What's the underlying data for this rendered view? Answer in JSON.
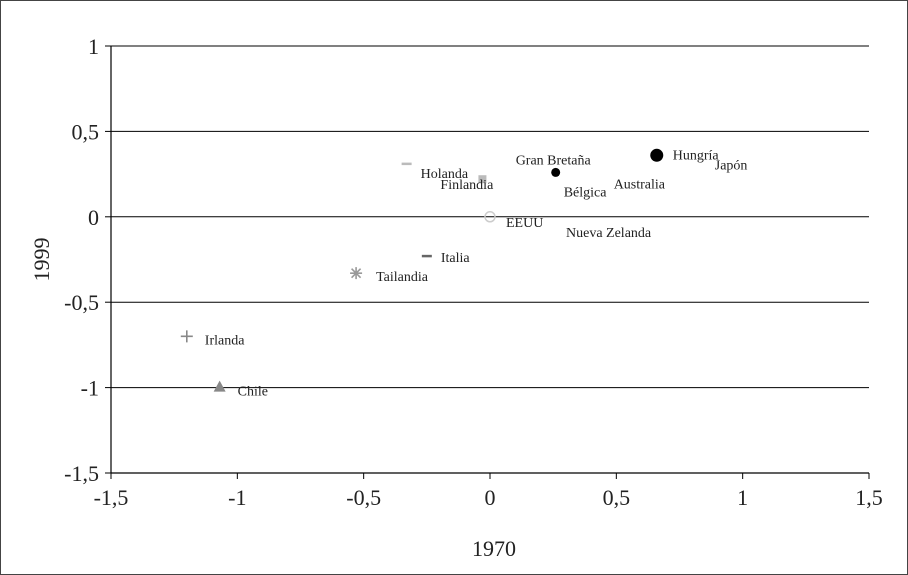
{
  "chart_data": {
    "type": "scatter",
    "title": "",
    "xlabel": "1970",
    "ylabel": "1999",
    "xlim": [
      -1.5,
      1.5
    ],
    "ylim": [
      -1.5,
      1
    ],
    "x_ticks": [
      -1.5,
      -1,
      -0.5,
      0,
      0.5,
      1,
      1.5
    ],
    "x_tick_labels": [
      "-1,5",
      "-1",
      "-0,5",
      "0",
      "0,5",
      "1",
      "1,5"
    ],
    "y_ticks": [
      1,
      0.5,
      0,
      -0.5,
      -1,
      -1.5
    ],
    "y_tick_labels": [
      "1",
      "0,5",
      "0",
      "-0,5",
      "-1",
      "-1,5"
    ],
    "grid": "horizontal",
    "legend": "none",
    "points": [
      {
        "label": "Hungría",
        "x": 0.66,
        "y": 0.36,
        "marker": "circle",
        "color": "#000000"
      },
      {
        "label": "Japón",
        "x": 0.66,
        "y": 0.36,
        "marker": "none",
        "color": "#000000"
      },
      {
        "label": "Gran Bretaña",
        "x": 0.26,
        "y": 0.26,
        "marker": "dot",
        "color": "#000000"
      },
      {
        "label": "Australia",
        "x": 0.26,
        "y": 0.26,
        "marker": "none",
        "color": "#000000"
      },
      {
        "label": "Bélgica",
        "x": 0.26,
        "y": 0.26,
        "marker": "none",
        "color": "#000000"
      },
      {
        "label": "Holanda",
        "x": -0.33,
        "y": 0.31,
        "marker": "dash",
        "color": "#bbbbbb"
      },
      {
        "label": "Finlandia",
        "x": -0.03,
        "y": 0.22,
        "marker": "square",
        "color": "#bbbbbb"
      },
      {
        "label": "EEUU",
        "x": 0.0,
        "y": 0.0,
        "marker": "circle-open",
        "color": "#cccccc"
      },
      {
        "label": "Nueva Zelanda",
        "x": 0.0,
        "y": 0.0,
        "marker": "none",
        "color": "#000000"
      },
      {
        "label": "Italia",
        "x": -0.25,
        "y": -0.23,
        "marker": "dash",
        "color": "#666666"
      },
      {
        "label": "Tailandia",
        "x": -0.53,
        "y": -0.33,
        "marker": "asterisk",
        "color": "#999999"
      },
      {
        "label": "Irlanda",
        "x": -1.2,
        "y": -0.7,
        "marker": "plus",
        "color": "#888888"
      },
      {
        "label": "Chile",
        "x": -1.07,
        "y": -1.0,
        "marker": "triangle",
        "color": "#888888"
      }
    ]
  }
}
